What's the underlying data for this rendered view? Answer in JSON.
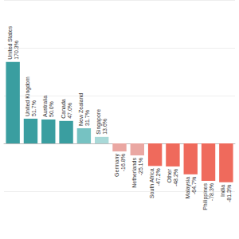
{
  "chart_data": {
    "type": "bar",
    "categories": [
      "United States",
      "United Kingdom",
      "Australia",
      "Canada",
      "New Zealand",
      "Singapore",
      "Germany",
      "Netherlands",
      "South Africa",
      "Other",
      "Malaysia",
      "Philippines",
      "India"
    ],
    "values": [
      170.3,
      51.7,
      50.0,
      47.0,
      31.7,
      13.6,
      -16.8,
      -25.1,
      -47.2,
      -48.2,
      -64.7,
      -78.3,
      -81.3
    ],
    "value_labels": [
      "170.3%",
      "51.7%",
      "50.0%",
      "47.0%",
      "31.7%",
      "13.6%",
      "-16.8%",
      "-25.1%",
      "-47.2%",
      "-48.2%",
      "-64.7%",
      "-78.3%",
      "-81.3%"
    ],
    "colors": [
      "#3a9ea0",
      "#3a9ea0",
      "#3a9ea0",
      "#3a9ea0",
      "#76c2c2",
      "#a9d9d8",
      "#eaa7a2",
      "#eaa7a2",
      "#ef6a5c",
      "#ef6a5c",
      "#ef6a5c",
      "#ef6a5c",
      "#ef6a5c"
    ],
    "ylim": [
      -200,
      300
    ],
    "yticks": [
      -200,
      -100,
      0,
      100,
      200,
      300
    ],
    "grid": true,
    "data_labels": true,
    "tick_labels": false
  }
}
